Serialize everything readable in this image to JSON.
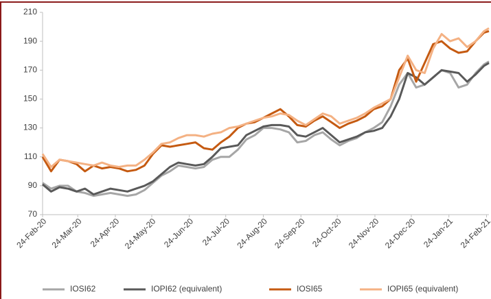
{
  "chart_data": {
    "type": "line",
    "x": [
      "2020-02-24",
      "2020-03-02",
      "2020-03-09",
      "2020-03-16",
      "2020-03-23",
      "2020-03-30",
      "2020-04-06",
      "2020-04-13",
      "2020-04-20",
      "2020-04-27",
      "2020-05-04",
      "2020-05-11",
      "2020-05-18",
      "2020-05-25",
      "2020-06-01",
      "2020-06-08",
      "2020-06-15",
      "2020-06-22",
      "2020-06-29",
      "2020-07-06",
      "2020-07-13",
      "2020-07-20",
      "2020-07-27",
      "2020-08-03",
      "2020-08-10",
      "2020-08-17",
      "2020-08-24",
      "2020-08-31",
      "2020-09-07",
      "2020-09-14",
      "2020-09-21",
      "2020-09-28",
      "2020-10-05",
      "2020-10-12",
      "2020-10-19",
      "2020-10-26",
      "2020-11-02",
      "2020-11-09",
      "2020-11-16",
      "2020-11-23",
      "2020-11-30",
      "2020-12-07",
      "2020-12-14",
      "2020-12-21",
      "2020-12-28",
      "2021-01-04",
      "2021-01-11",
      "2021-01-18",
      "2021-01-25",
      "2021-02-01",
      "2021-02-08",
      "2021-02-15",
      "2021-02-22",
      "2021-02-26"
    ],
    "series": [
      {
        "name": "IOSI62",
        "color": "#a6a6a6",
        "values": [
          92,
          88,
          90,
          90,
          86,
          85,
          83,
          84,
          85,
          84,
          83,
          84,
          87,
          92,
          97,
          100,
          104,
          103,
          102,
          103,
          108,
          110,
          110,
          115,
          122,
          125,
          130,
          130,
          129,
          127,
          120,
          121,
          125,
          127,
          122,
          118,
          121,
          123,
          127,
          130,
          134,
          145,
          160,
          168,
          158,
          160,
          165,
          170,
          168,
          158,
          160,
          168,
          174,
          176
        ]
      },
      {
        "name": "IOPI62 (equivalent)",
        "color": "#595959",
        "values": [
          91,
          86,
          89,
          88,
          86,
          88,
          84,
          86,
          88,
          87,
          86,
          88,
          90,
          93,
          98,
          103,
          106,
          105,
          104,
          105,
          110,
          116,
          117,
          118,
          125,
          128,
          131,
          132,
          132,
          131,
          125,
          124,
          127,
          130,
          125,
          120,
          122,
          124,
          127,
          128,
          130,
          138,
          150,
          168,
          165,
          160,
          165,
          170,
          169,
          168,
          162,
          167,
          173,
          175
        ]
      },
      {
        "name": "IOSI65",
        "color": "#c55a11",
        "values": [
          110,
          100,
          108,
          107,
          105,
          100,
          104,
          102,
          103,
          102,
          100,
          101,
          104,
          112,
          118,
          117,
          118,
          119,
          120,
          116,
          115,
          120,
          124,
          130,
          133,
          134,
          137,
          140,
          143,
          138,
          132,
          131,
          135,
          138,
          134,
          130,
          133,
          135,
          138,
          143,
          145,
          150,
          170,
          178,
          162,
          175,
          188,
          190,
          185,
          182,
          183,
          190,
          196,
          197
        ]
      },
      {
        "name": "IOPI65 (equivalent)",
        "color": "#f4b183",
        "values": [
          112,
          103,
          108,
          107,
          106,
          105,
          104,
          106,
          104,
          103,
          104,
          104,
          108,
          113,
          119,
          120,
          123,
          125,
          125,
          124,
          126,
          127,
          130,
          131,
          133,
          135,
          137,
          138,
          140,
          139,
          135,
          132,
          136,
          140,
          138,
          133,
          135,
          137,
          140,
          144,
          147,
          150,
          165,
          180,
          170,
          168,
          185,
          195,
          190,
          192,
          186,
          190,
          197,
          199
        ]
      }
    ],
    "xlim": [
      "2020-02-24",
      "2021-02-26"
    ],
    "xticks": [
      {
        "value": "2020-02-24",
        "label": "24-Feb-20"
      },
      {
        "value": "2020-03-24",
        "label": "24-Mar-20"
      },
      {
        "value": "2020-04-24",
        "label": "24-Apr-20"
      },
      {
        "value": "2020-05-24",
        "label": "24-May-20"
      },
      {
        "value": "2020-06-24",
        "label": "24-Jun-20"
      },
      {
        "value": "2020-07-24",
        "label": "24-Jul-20"
      },
      {
        "value": "2020-08-24",
        "label": "24-Aug-20"
      },
      {
        "value": "2020-09-24",
        "label": "24-Sep-20"
      },
      {
        "value": "2020-10-24",
        "label": "24-Oct-20"
      },
      {
        "value": "2020-11-24",
        "label": "24-Nov-20"
      },
      {
        "value": "2020-12-24",
        "label": "24-Dec-20"
      },
      {
        "value": "2021-01-24",
        "label": "24-Jan-21"
      },
      {
        "value": "2021-02-24",
        "label": "24-Feb-21"
      }
    ],
    "ylim": [
      70,
      210
    ],
    "yticks": [
      70,
      90,
      110,
      130,
      150,
      170,
      190,
      210
    ],
    "grid": false,
    "legend": "bottom"
  }
}
